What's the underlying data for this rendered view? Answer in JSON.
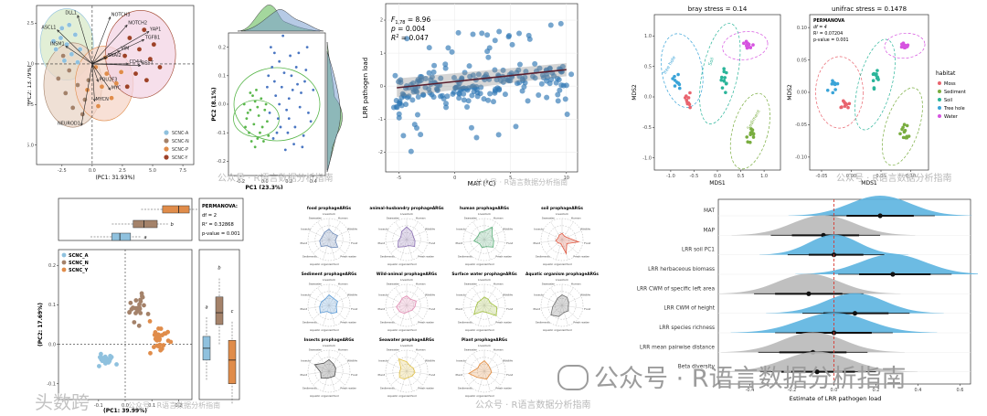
{
  "colors": {
    "scnc_a": "#8fc1de",
    "scnc_n": "#a4826a",
    "scnc_p": "#e08c4a",
    "scnc_y": "#9e4128",
    "green": "#5ab74c",
    "blue": "#4a76c2",
    "steelblue": "#2e77b3",
    "grey_density": "#b9b9b9",
    "blue_density": "#5cb4e0",
    "red_line": "#d63a32",
    "habitat_moss": "#e9646e",
    "habitat_sediment": "#79ad3f",
    "habitat_soil": "#2bb59a",
    "habitat_treehole": "#3aa4d8",
    "habitat_water": "#d653e0"
  },
  "watermarks": {
    "small": "公众号 · R语言数据分析指南",
    "big": "公众号 · R语言数据分析指南",
    "corner": "头数跨"
  },
  "chart_data": [
    {
      "id": "biplot",
      "type": "scatter",
      "xlabel": "(PC1: 31.93%)",
      "ylabel": "(PC2: 13.79%)",
      "xticks": [
        "-2.5",
        "0.0",
        "2.5",
        "5.0",
        "7.5"
      ],
      "yticks": [
        "2.5",
        "0.0",
        "-2.5",
        "-5.0"
      ],
      "xlim": [
        -4.6,
        8.4
      ],
      "ylim": [
        -6.2,
        3.6
      ],
      "legend": [
        "SCNC-A",
        "SCNC-N",
        "SCNC-P",
        "SCNC-Y"
      ],
      "legend_position": "right",
      "genes": [
        {
          "name": "DLL1",
          "x": -1.2,
          "y": 3.0
        },
        {
          "name": "NOTCH3",
          "x": 1.5,
          "y": 2.9
        },
        {
          "name": "NOTCH2",
          "x": 2.9,
          "y": 2.4
        },
        {
          "name": "YAP1",
          "x": 4.7,
          "y": 2.0
        },
        {
          "name": "ASCL1",
          "x": -2.9,
          "y": 2.1
        },
        {
          "name": "TGFB1",
          "x": 4.3,
          "y": 1.5
        },
        {
          "name": "VIM",
          "x": 2.3,
          "y": 0.8
        },
        {
          "name": "SNAI2",
          "x": 1.2,
          "y": 0.4
        },
        {
          "name": "CD44",
          "x": 3.0,
          "y": 0.0
        },
        {
          "name": "REST",
          "x": 4.0,
          "y": -0.1
        },
        {
          "name": "NEUROD1",
          "x": -0.9,
          "y": -3.8
        },
        {
          "name": "INSM1",
          "x": -2.2,
          "y": 1.1
        },
        {
          "name": "POU2F3",
          "x": 0.5,
          "y": -1.1
        },
        {
          "name": "MYC",
          "x": 1.5,
          "y": -1.6
        },
        {
          "name": "MYCN",
          "x": 0.2,
          "y": -2.3
        }
      ],
      "groups": [
        {
          "name": "SCNC-A",
          "points": [
            [
              -2.6,
              1.6
            ],
            [
              -2.1,
              1.2
            ],
            [
              -3.0,
              0.9
            ],
            [
              -1.7,
              0.6
            ],
            [
              -2.3,
              0.2
            ],
            [
              -1.4,
              1.8
            ],
            [
              -3.2,
              1.4
            ],
            [
              -1.0,
              0.9
            ],
            [
              -2.5,
              2.2
            ],
            [
              -1.9,
              2.4
            ],
            [
              -1.2,
              0.1
            ]
          ]
        },
        {
          "name": "SCNC-N",
          "points": [
            [
              -1.9,
              -0.4
            ],
            [
              -2.8,
              -0.9
            ],
            [
              -1.2,
              -1.3
            ],
            [
              -2.2,
              -1.8
            ],
            [
              -0.6,
              -2.2
            ],
            [
              -1.6,
              -2.7
            ],
            [
              -0.8,
              -3.1
            ],
            [
              -2.4,
              0.5
            ],
            [
              -0.3,
              -1.0
            ]
          ]
        },
        {
          "name": "SCNC-P",
          "points": [
            [
              0.3,
              -0.2
            ],
            [
              1.2,
              -0.6
            ],
            [
              0.8,
              -1.4
            ],
            [
              2.0,
              -1.2
            ],
            [
              1.6,
              -2.1
            ],
            [
              -0.4,
              -1.6
            ],
            [
              0.5,
              -2.6
            ],
            [
              1.1,
              0.4
            ],
            [
              2.4,
              -0.5
            ]
          ]
        },
        {
          "name": "SCNC-Y",
          "points": [
            [
              3.1,
              1.6
            ],
            [
              3.9,
              0.9
            ],
            [
              4.8,
              0.3
            ],
            [
              3.6,
              -0.6
            ],
            [
              5.1,
              1.2
            ],
            [
              4.3,
              2.1
            ],
            [
              2.7,
              0.5
            ],
            [
              2.9,
              -1.4
            ],
            [
              4.5,
              -1.0
            ],
            [
              5.6,
              -0.2
            ]
          ]
        }
      ]
    },
    {
      "id": "pca-marginal",
      "type": "scatter",
      "xlabel": "PC1 (23.3%)",
      "ylabel": "PC2 (8.1%)",
      "xticks": [
        "-0.2",
        "0.0",
        "0.2",
        "0.4"
      ],
      "yticks": [
        "0.2",
        "0.1",
        "0.0",
        "-0.1",
        "-0.2"
      ],
      "xlim": [
        -0.3,
        0.5
      ],
      "ylim": [
        -0.25,
        0.25
      ],
      "series": [
        {
          "name": "green",
          "points": [
            [
              -0.12,
              -0.02
            ],
            [
              -0.08,
              0.01
            ],
            [
              -0.15,
              -0.05
            ],
            [
              -0.05,
              -0.04
            ],
            [
              -0.1,
              0.03
            ],
            [
              -0.02,
              -0.08
            ],
            [
              -0.13,
              -0.1
            ],
            [
              -0.06,
              -0.12
            ],
            [
              0.0,
              -0.02
            ],
            [
              -0.17,
              0.0
            ],
            [
              -0.09,
              -0.07
            ],
            [
              -0.03,
              0.02
            ],
            [
              0.02,
              -0.06
            ],
            [
              -0.11,
              -0.13
            ],
            [
              -0.07,
              0.05
            ],
            [
              -0.14,
              -0.03
            ],
            [
              -0.04,
              -0.1
            ],
            [
              0.01,
              0.0
            ],
            [
              -0.16,
              -0.08
            ],
            [
              -0.08,
              -0.15
            ],
            [
              0.03,
              -0.11
            ],
            [
              -0.01,
              -0.13
            ],
            [
              -0.12,
              0.04
            ],
            [
              -0.06,
              -0.01
            ]
          ]
        },
        {
          "name": "blue",
          "points": [
            [
              0.05,
              0.2
            ],
            [
              0.12,
              0.15
            ],
            [
              0.22,
              0.1
            ],
            [
              0.3,
              0.04
            ],
            [
              0.18,
              -0.02
            ],
            [
              0.08,
              0.08
            ],
            [
              0.25,
              -0.08
            ],
            [
              0.34,
              0.12
            ],
            [
              0.15,
              0.24
            ],
            [
              0.04,
              -0.03
            ],
            [
              0.28,
              0.18
            ],
            [
              0.1,
              -0.1
            ],
            [
              0.2,
              0.02
            ],
            [
              0.36,
              -0.03
            ],
            [
              0.14,
              0.06
            ],
            [
              0.06,
              0.13
            ],
            [
              0.24,
              -0.14
            ],
            [
              0.32,
              -0.11
            ],
            [
              0.17,
              -0.16
            ],
            [
              0.09,
              0.03
            ],
            [
              0.27,
              0.07
            ],
            [
              0.4,
              0.05
            ],
            [
              0.11,
              -0.05
            ],
            [
              0.21,
              0.17
            ],
            [
              0.03,
              0.1
            ],
            [
              0.29,
              -0.01
            ],
            [
              0.16,
              0.11
            ],
            [
              0.35,
              0.2
            ],
            [
              0.07,
              -0.12
            ],
            [
              0.13,
              -0.08
            ],
            [
              0.23,
              0.05
            ],
            [
              0.38,
              -0.06
            ],
            [
              0.19,
              -0.1
            ],
            [
              0.02,
              0.06
            ],
            [
              0.26,
              0.13
            ],
            [
              0.31,
              -0.15
            ],
            [
              0.12,
              0.0
            ],
            [
              0.2,
              -0.05
            ],
            [
              0.33,
              0.08
            ],
            [
              0.08,
              0.18
            ]
          ]
        }
      ]
    },
    {
      "id": "regression",
      "type": "scatter",
      "xlabel": "MAT (°C)",
      "ylabel": "LRR pathogen load",
      "xticks": [
        "-5",
        "0",
        "5",
        "10"
      ],
      "yticks": [
        "2",
        "1",
        "0",
        "-1",
        "-2"
      ],
      "xlim": [
        -6.2,
        11
      ],
      "ylim": [
        -2.6,
        2.5
      ],
      "stats": {
        "f": "F",
        "f_sub": "1,78",
        "f_val": " = 8.96",
        "p": "p",
        "p_val": " = 0.004",
        "r": "R",
        "r_sup": "2",
        "r_val": " = 0.047"
      },
      "fit": {
        "x0": -5.2,
        "y0": -0.05,
        "x1": 10.0,
        "y1": 0.5
      }
    },
    {
      "id": "nmds-bray",
      "type": "scatter",
      "title": "bray stress = 0.14",
      "xlabel": "MDS1",
      "ylabel": "MDS2",
      "xticks": [
        "-1.0",
        "-0.5",
        "0.0",
        "0.5",
        "1.0"
      ],
      "yticks": [
        "1.0",
        "0.5",
        "0.0",
        "-0.5",
        "-1.0"
      ],
      "xlim": [
        -1.35,
        1.35
      ],
      "ylim": [
        -1.2,
        1.35
      ],
      "ellipse_labels": [
        "Tree hole",
        "Soil",
        "Sediment"
      ]
    },
    {
      "id": "nmds-unifrac",
      "type": "scatter",
      "title": "unifrac stress = 0.1478",
      "xlabel": "MDS1",
      "ylabel": "MDS2",
      "xticks": [
        "-0.05",
        "0.00",
        "0.05",
        "0.10"
      ],
      "yticks": [
        "0.10",
        "0.05",
        "0.00",
        "-0.05",
        "-0.10"
      ],
      "xlim": [
        -0.07,
        0.13
      ],
      "ylim": [
        -0.12,
        0.12
      ],
      "annotation": [
        "PERMANOVA",
        "df = 4",
        "R² = 0.07204",
        "p-value = 0.001"
      ],
      "legend_title": "habitat",
      "legend": [
        "Moss",
        "Sediment",
        "Soil",
        "Tree hole",
        "Water"
      ],
      "legend_position": "right"
    },
    {
      "id": "pcoa-box",
      "type": "scatter",
      "xlabel": "(PC1: 39.99%)",
      "ylabel": "(PC2: 17.69%)",
      "xticks": [
        "-0.1",
        "0.0",
        "0.1",
        "0.2"
      ],
      "yticks": [
        "0.2",
        "0.1",
        "0.0",
        "-0.1"
      ],
      "xlim": [
        -0.25,
        0.25
      ],
      "ylim": [
        -0.14,
        0.24
      ],
      "legend": [
        "SCNC_A",
        "SCNC_N",
        "SCNC_Y"
      ],
      "legend_position": "top-left",
      "annotation": [
        "PERMANOVA:",
        "df = 2",
        "R² = 0.32868",
        "p-value = 0.001"
      ],
      "letters": [
        "c",
        "b",
        "a"
      ],
      "box_right_letters": [
        "a",
        "b",
        "c"
      ]
    },
    {
      "id": "radar",
      "type": "radar",
      "axes": [
        "Livestock",
        "Human",
        "Wildlife",
        "Food",
        "Fresh water",
        "Soil",
        "Aquatic organism",
        "Sediments",
        "Plant",
        "Insects",
        "Seawater"
      ],
      "panels": [
        {
          "title": "food prophageARGs",
          "color": "#6c89b8",
          "values": [
            0.5,
            0.35,
            0.45,
            0.3,
            0.55,
            0.4,
            0.3,
            0.5,
            0.45,
            0.35,
            0.4
          ]
        },
        {
          "title": "animal-husbandry prophageARGs",
          "color": "#8a6fb2",
          "values": [
            0.6,
            0.45,
            0.35,
            0.4,
            0.5,
            0.3,
            0.35,
            0.55,
            0.4,
            0.3,
            0.45
          ]
        },
        {
          "title": "human prophageARGs",
          "color": "#5cb07a",
          "values": [
            0.4,
            0.7,
            0.4,
            0.45,
            0.55,
            0.35,
            0.4,
            0.3,
            0.5,
            0.35,
            0.4
          ]
        },
        {
          "title": "soil prophageARGs",
          "color": "#e05a43",
          "values": [
            0.3,
            0.2,
            0.25,
            0.8,
            0.3,
            0.7,
            0.2,
            0.25,
            0.3,
            0.2,
            0.25
          ]
        },
        {
          "title": "Sediment prophageARGs",
          "color": "#5a9ad6",
          "values": [
            0.5,
            0.4,
            0.45,
            0.35,
            0.5,
            0.4,
            0.3,
            0.55,
            0.45,
            0.4,
            0.35
          ]
        },
        {
          "title": "Wild-animal prophageARGs",
          "color": "#e28cb3",
          "values": [
            0.45,
            0.35,
            0.5,
            0.4,
            0.35,
            0.3,
            0.4,
            0.45,
            0.5,
            0.35,
            0.4
          ]
        },
        {
          "title": "Surface water prophageARGs",
          "color": "#a2c13e",
          "values": [
            0.4,
            0.35,
            0.3,
            0.6,
            0.75,
            0.35,
            0.3,
            0.65,
            0.4,
            0.35,
            0.3
          ]
        },
        {
          "title": "Aquatic organism prophageARGs",
          "color": "#6c6c6c",
          "values": [
            0.5,
            0.45,
            0.35,
            0.3,
            0.4,
            0.35,
            0.55,
            0.7,
            0.45,
            0.35,
            0.4
          ]
        },
        {
          "title": "Insects prophageARGs",
          "color": "#4e4e4e",
          "values": [
            0.55,
            0.4,
            0.35,
            0.3,
            0.35,
            0.3,
            0.35,
            0.5,
            0.4,
            0.75,
            0.45
          ]
        },
        {
          "title": "Seawater prophageARGs",
          "color": "#e3c34a",
          "values": [
            0.45,
            0.3,
            0.35,
            0.4,
            0.35,
            0.3,
            0.4,
            0.45,
            0.35,
            0.3,
            0.7
          ]
        },
        {
          "title": "Plant prophageARGs",
          "color": "#e38b3c",
          "values": [
            0.5,
            0.35,
            0.3,
            0.35,
            0.3,
            0.4,
            0.35,
            0.45,
            0.75,
            0.35,
            0.4
          ]
        }
      ]
    },
    {
      "id": "ridges",
      "type": "area",
      "xlabel": "Estimate of LRR pathogen load",
      "xticks": [
        "-0.4",
        "-0.2",
        "0.0",
        "0.2",
        "0.4",
        "0.6"
      ],
      "xlim": [
        -0.55,
        0.65
      ],
      "rows": [
        {
          "label": "MAT",
          "mean": 0.22,
          "lo": 0.06,
          "hi": 0.38,
          "color": "blue"
        },
        {
          "label": "MAP",
          "mean": -0.05,
          "lo": -0.2,
          "hi": 0.12,
          "color": "grey"
        },
        {
          "label": "LRR soil PC1",
          "mean": 0.0,
          "lo": -0.12,
          "hi": 0.14,
          "color": "blue"
        },
        {
          "label": "LRR herbaceous biomass",
          "mean": 0.28,
          "lo": 0.12,
          "hi": 0.46,
          "color": "blue"
        },
        {
          "label": "LRR CWM of specific left area",
          "mean": -0.12,
          "lo": -0.28,
          "hi": 0.04,
          "color": "grey"
        },
        {
          "label": "LRR CWM of height",
          "mean": 0.1,
          "lo": -0.05,
          "hi": 0.26,
          "color": "blue"
        },
        {
          "label": "LRR species richness",
          "mean": 0.0,
          "lo": -0.18,
          "hi": 0.18,
          "color": "blue"
        },
        {
          "label": "LRR mean pairwise distance",
          "mean": -0.1,
          "lo": -0.26,
          "hi": 0.06,
          "color": "grey"
        },
        {
          "label": "Beta diversity",
          "mean": -0.08,
          "lo": -0.25,
          "hi": 0.1,
          "color": "grey"
        }
      ]
    }
  ]
}
